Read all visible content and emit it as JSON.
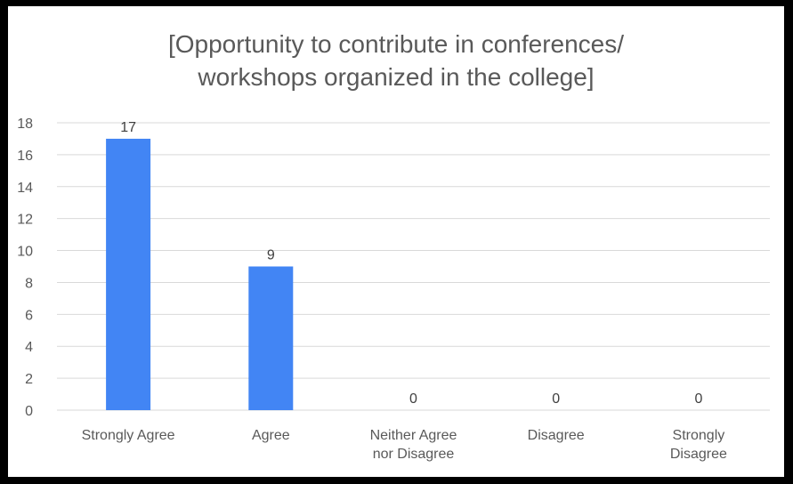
{
  "chart_data": {
    "type": "bar",
    "title_lines": [
      "[Opportunity to contribute in conferences/",
      "workshops organized in the college]"
    ],
    "categories": [
      [
        "Strongly Agree"
      ],
      [
        "Agree"
      ],
      [
        "Neither Agree",
        "nor Disagree"
      ],
      [
        "Disagree"
      ],
      [
        "Strongly",
        "Disagree"
      ]
    ],
    "values": [
      17,
      9,
      0,
      0,
      0
    ],
    "ylim": [
      0,
      18
    ],
    "yticks": [
      0,
      2,
      4,
      6,
      8,
      10,
      12,
      14,
      16,
      18
    ],
    "grid": true,
    "bar_color": "#4285f4",
    "grid_color": "#d9d9d9"
  }
}
